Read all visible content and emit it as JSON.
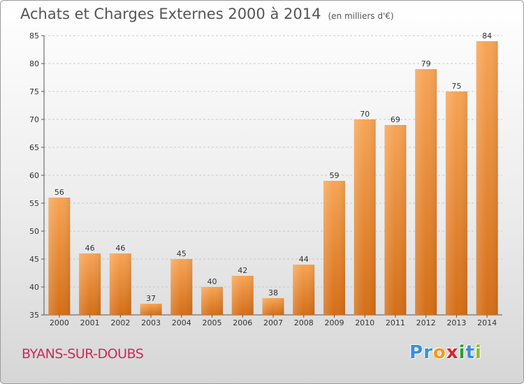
{
  "header": {
    "title": "Achats et Charges Externes 2000 à 2014",
    "subtitle": "(en milliers d'€)"
  },
  "footer": {
    "city": "BYANS-SUR-DOUBS",
    "logo_letters": [
      "P",
      "r",
      "o",
      "x",
      "i",
      "t",
      "i"
    ],
    "logo_colors": [
      "#3a8fd8",
      "#2e9ad3",
      "#f29a1c",
      "#d8262e",
      "#2d9a3a",
      "#3a8fd8",
      "#8bbd2b"
    ]
  },
  "chart_data": {
    "type": "bar",
    "title": "Achats et Charges Externes 2000 à 2014",
    "subtitle": "(en milliers d'€)",
    "categories": [
      "2000",
      "2001",
      "2002",
      "2003",
      "2004",
      "2005",
      "2006",
      "2007",
      "2008",
      "2009",
      "2010",
      "2011",
      "2012",
      "2013",
      "2014"
    ],
    "values": [
      56,
      46,
      46,
      37,
      45,
      40,
      42,
      38,
      44,
      59,
      70,
      69,
      79,
      75,
      84
    ],
    "ylim": [
      35,
      85
    ],
    "yticks": [
      35,
      40,
      45,
      50,
      55,
      60,
      65,
      70,
      75,
      80,
      85
    ],
    "grid": true,
    "bar_color": "#f0882a"
  }
}
